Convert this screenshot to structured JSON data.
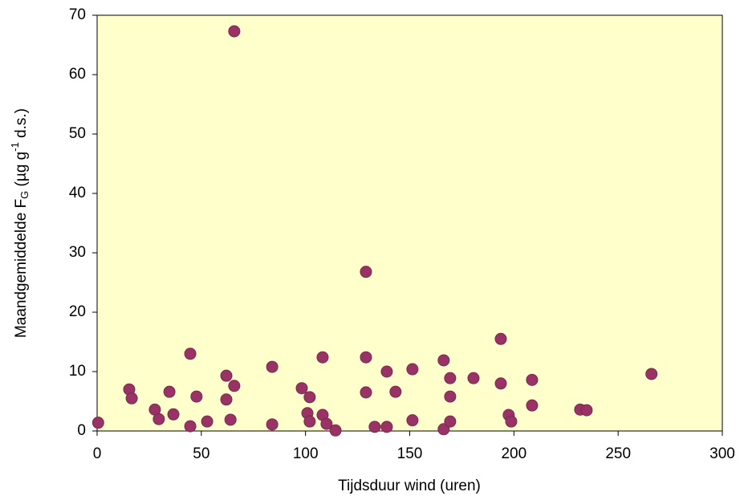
{
  "chart_data": {
    "type": "scatter",
    "xlabel": "Tijdsduur wind (uren)",
    "ylabel_parts": [
      "Maandgemiddelde F",
      "G",
      " (µg g",
      "-1",
      " d.s.)"
    ],
    "color": "#993366",
    "background": "#ffffcc",
    "xlim": [
      0,
      300
    ],
    "xticks": [
      0,
      50,
      100,
      150,
      200,
      250,
      300
    ],
    "ylim": [
      0,
      70
    ],
    "yticks": [
      0,
      10,
      20,
      30,
      40,
      50,
      60,
      70
    ],
    "x": [
      0.5,
      15.4,
      16.6,
      27.7,
      29.6,
      34.7,
      36.6,
      44.7,
      44.7,
      47.7,
      52.8,
      62,
      62,
      64,
      65.8,
      65.8,
      84,
      84,
      98.2,
      100.9,
      102,
      102,
      108.2,
      108.2,
      110.1,
      114.4,
      129,
      129,
      129,
      133.2,
      139,
      139,
      143.2,
      151.3,
      151.3,
      166.3,
      166.3,
      169.4,
      169.4,
      169.4,
      180.6,
      193.7,
      193.7,
      197.5,
      198.7,
      208.7,
      208.7,
      231.8,
      234.9,
      266
    ],
    "values": [
      1.4,
      7.0,
      5.5,
      3.6,
      2.0,
      6.6,
      2.8,
      13.0,
      0.8,
      5.8,
      1.6,
      9.3,
      5.3,
      1.9,
      7.6,
      67.3,
      10.8,
      1.1,
      7.2,
      3.0,
      5.7,
      1.6,
      12.4,
      2.7,
      1.2,
      0.1,
      26.8,
      12.4,
      6.5,
      0.7,
      10.0,
      0.7,
      6.6,
      10.4,
      1.8,
      11.9,
      0.3,
      8.9,
      5.8,
      1.6,
      8.9,
      15.5,
      8.0,
      2.7,
      1.6,
      8.6,
      4.3,
      3.6,
      3.5,
      9.6
    ]
  }
}
